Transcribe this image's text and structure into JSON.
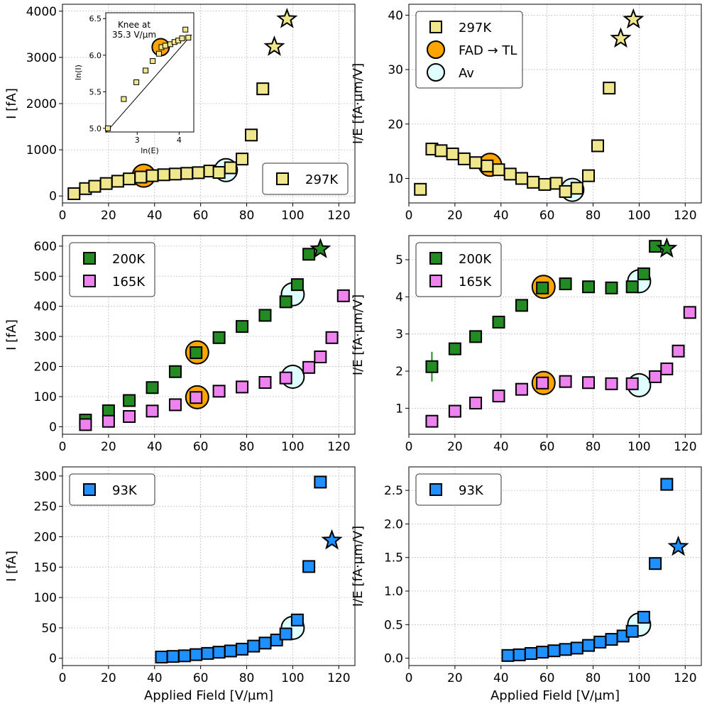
{
  "colors": {
    "c297": "#f0e68c",
    "c200": "#228b22",
    "c165": "#ee82ee",
    "c93": "#1e90ff",
    "fad": "#ffa500",
    "av": "#e0ffff",
    "grid": "#b0b0b0"
  },
  "chart_data": [
    {
      "id": "a",
      "type": "scatter",
      "xlim": [
        0,
        127
      ],
      "ylim": [
        -150,
        4150
      ],
      "xticks": [
        0,
        20,
        40,
        60,
        80,
        100,
        120
      ],
      "yticks": [
        0,
        1000,
        2000,
        3000,
        4000
      ],
      "xlabel": "",
      "ylabel": "I [fA]",
      "grid": true,
      "legend": {
        "position": "lower-right",
        "entries": [
          {
            "label": "297K",
            "marker": "square",
            "color": "c297"
          }
        ]
      },
      "series": [
        {
          "name": "297K",
          "marker": "square",
          "color": "c297",
          "x": [
            5,
            10,
            14,
            19,
            24,
            29,
            34,
            39,
            44,
            49,
            54,
            59,
            64,
            68,
            73,
            78,
            82,
            87
          ],
          "y": [
            50,
            160,
            210,
            270,
            320,
            370,
            410,
            440,
            460,
            475,
            490,
            505,
            540,
            510,
            610,
            800,
            1320,
            2320
          ]
        },
        {
          "name": "stars",
          "marker": "star",
          "color": "c297",
          "x": [
            92,
            97.5
          ],
          "y": [
            3230,
            3830
          ]
        }
      ],
      "fad": {
        "x": 35.3,
        "y": 440
      },
      "av": {
        "x": 71,
        "y": 560
      },
      "inset": {
        "xlim": [
          2.25,
          4.35
        ],
        "ylim": [
          4.95,
          6.58
        ],
        "xticks": [
          3,
          4
        ],
        "yticks": [
          5.0,
          5.5,
          6.0,
          6.5
        ],
        "xlabel": "ln(E)",
        "ylabel": "ln(I)",
        "annotation": [
          "Knee at",
          "35.3 V/µm"
        ],
        "points": {
          "x": [
            2.3,
            2.68,
            2.98,
            3.2,
            3.37,
            3.52,
            3.58,
            3.67,
            3.79,
            3.89,
            3.98,
            4.07,
            4.15,
            4.22
          ],
          "y": [
            5.0,
            5.4,
            5.63,
            5.79,
            5.92,
            6.02,
            6.11,
            6.13,
            6.15,
            6.18,
            6.2,
            6.23,
            6.35,
            6.24
          ]
        },
        "fit": {
          "x": [
            2.25,
            4.3
          ],
          "y": [
            4.94,
            6.28
          ]
        },
        "fad": {
          "x": 3.56,
          "y": 6.11
        }
      }
    },
    {
      "id": "b",
      "type": "scatter",
      "xlim": [
        0,
        127
      ],
      "ylim": [
        5.5,
        42
      ],
      "xticks": [
        0,
        20,
        40,
        60,
        80,
        100,
        120
      ],
      "yticks": [
        10,
        20,
        30,
        40
      ],
      "xlabel": "",
      "ylabel": "I/E [fA·µm/V]",
      "grid": true,
      "legend": {
        "position": "top-left",
        "entries": [
          {
            "label": "297K",
            "marker": "square",
            "color": "c297"
          },
          {
            "label": "FAD → TL",
            "marker": "circle",
            "color": "fad"
          },
          {
            "label": "Av",
            "marker": "circle",
            "color": "av"
          }
        ]
      },
      "series": [
        {
          "name": "297K",
          "marker": "square",
          "color": "c297",
          "x": [
            5,
            10,
            14,
            19,
            24,
            29,
            34,
            39,
            44,
            49,
            54,
            59,
            64,
            68,
            73,
            78,
            82,
            87
          ],
          "y": [
            8,
            15.4,
            15.1,
            14.5,
            13.6,
            12.9,
            12.3,
            11.6,
            10.8,
            10,
            9.3,
            8.9,
            9.1,
            7.6,
            8.2,
            10.5,
            16,
            26.6
          ]
        },
        {
          "name": "stars",
          "marker": "star",
          "color": "c297",
          "x": [
            92,
            97.5
          ],
          "y": [
            35.7,
            39.2
          ]
        }
      ],
      "fad": {
        "x": 35.3,
        "y": 12.5
      },
      "av": {
        "x": 71,
        "y": 7.9
      }
    },
    {
      "id": "c",
      "type": "scatter",
      "xlim": [
        0,
        127
      ],
      "ylim": [
        -25,
        635
      ],
      "xticks": [
        0,
        20,
        40,
        60,
        80,
        100,
        120
      ],
      "yticks": [
        0,
        100,
        200,
        300,
        400,
        500,
        600
      ],
      "xlabel": "",
      "ylabel": "I [fA]",
      "grid": true,
      "legend": {
        "position": "top-left",
        "entries": [
          {
            "label": "200K",
            "marker": "square",
            "color": "c200"
          },
          {
            "label": "165K",
            "marker": "square",
            "color": "c165"
          }
        ]
      },
      "series": [
        {
          "name": "200K",
          "marker": "square",
          "color": "c200",
          "x": [
            10,
            20,
            29,
            39,
            49,
            58,
            68,
            78,
            88,
            97,
            102,
            107
          ],
          "y": [
            22,
            53,
            87,
            130,
            183,
            246,
            296,
            333,
            370,
            415,
            472,
            573
          ]
        },
        {
          "name": "165K",
          "marker": "square",
          "color": "c165",
          "x": [
            10,
            20,
            29,
            39,
            49,
            58,
            68,
            78,
            88,
            97,
            107,
            112,
            117,
            122
          ],
          "y": [
            7,
            18,
            34,
            52,
            73,
            97,
            118,
            132,
            147,
            162,
            197,
            232,
            296,
            435
          ]
        },
        {
          "name": "star200",
          "marker": "star",
          "color": "c200",
          "x": [
            112
          ],
          "y": [
            590
          ]
        }
      ],
      "fad": [
        {
          "x": 58.5,
          "y": 247
        },
        {
          "x": 58.5,
          "y": 98
        }
      ],
      "av": [
        {
          "x": 100,
          "y": 440
        },
        {
          "x": 100,
          "y": 166
        }
      ]
    },
    {
      "id": "d",
      "type": "scatter",
      "xlim": [
        0,
        127
      ],
      "ylim": [
        0.3,
        5.65
      ],
      "xticks": [
        0,
        20,
        40,
        60,
        80,
        100,
        120
      ],
      "yticks": [
        1,
        2,
        3,
        4,
        5
      ],
      "xlabel": "",
      "ylabel": "I/E [fA·µm/V]",
      "grid": true,
      "legend": {
        "position": "top-left",
        "entries": [
          {
            "label": "200K",
            "marker": "square",
            "color": "c200"
          },
          {
            "label": "165K",
            "marker": "square",
            "color": "c165"
          }
        ]
      },
      "series": [
        {
          "name": "200K",
          "marker": "square",
          "color": "c200",
          "x": [
            10,
            20,
            29,
            39,
            49,
            58,
            68,
            78,
            88,
            97,
            102,
            107
          ],
          "y": [
            2.12,
            2.6,
            2.93,
            3.32,
            3.77,
            4.24,
            4.35,
            4.27,
            4.24,
            4.27,
            4.62,
            5.36
          ]
        },
        {
          "name": "165K",
          "marker": "square",
          "color": "c165",
          "x": [
            10,
            20,
            29,
            39,
            49,
            58,
            68,
            78,
            88,
            97,
            107,
            112,
            117,
            122
          ],
          "y": [
            0.65,
            0.92,
            1.14,
            1.33,
            1.51,
            1.68,
            1.72,
            1.69,
            1.66,
            1.66,
            1.85,
            2.06,
            2.54,
            3.58
          ]
        },
        {
          "name": "star200",
          "marker": "star",
          "color": "c200",
          "x": [
            112
          ],
          "y": [
            5.3
          ]
        }
      ],
      "errorbars": [
        {
          "x": 10,
          "low": 1.72,
          "high": 2.52,
          "color": "c200"
        },
        {
          "x": 20,
          "low": 2.44,
          "high": 2.76,
          "color": "c200"
        }
      ],
      "fad": [
        {
          "x": 58.5,
          "y": 4.27
        },
        {
          "x": 58.5,
          "y": 1.68
        }
      ],
      "av": [
        {
          "x": 100,
          "y": 4.42
        },
        {
          "x": 100,
          "y": 1.62
        }
      ]
    },
    {
      "id": "e",
      "type": "scatter",
      "xlim": [
        0,
        127
      ],
      "ylim": [
        -12,
        315
      ],
      "xticks": [
        0,
        20,
        40,
        60,
        80,
        100,
        120
      ],
      "yticks": [
        0,
        50,
        100,
        150,
        200,
        250,
        300
      ],
      "xlabel": "Applied Field [V/µm]",
      "ylabel": "I [fA]",
      "grid": true,
      "legend": {
        "position": "top-left",
        "entries": [
          {
            "label": "93K",
            "marker": "square",
            "color": "c93"
          }
        ]
      },
      "series": [
        {
          "name": "93K",
          "marker": "square",
          "color": "c93",
          "x": [
            43,
            48,
            53,
            58,
            63,
            68,
            73,
            78,
            83,
            88,
            93,
            97,
            102,
            107,
            112
          ],
          "y": [
            2,
            3,
            4,
            6,
            8,
            10,
            12,
            15,
            20,
            25,
            30,
            40,
            63,
            151,
            290
          ]
        },
        {
          "name": "star93",
          "marker": "star",
          "color": "c93",
          "x": [
            117
          ],
          "y": [
            194
          ]
        }
      ],
      "av": {
        "x": 100,
        "y": 50
      }
    },
    {
      "id": "f",
      "type": "scatter",
      "xlim": [
        0,
        127
      ],
      "ylim": [
        -0.11,
        2.85
      ],
      "xticks": [
        0,
        20,
        40,
        60,
        80,
        100,
        120
      ],
      "yticks": [
        0.0,
        0.5,
        1.0,
        1.5,
        2.0,
        2.5
      ],
      "xlabel": "Applied Field [V/µm]",
      "ylabel": "I/E [fA·µm/V]",
      "grid": true,
      "legend": {
        "position": "top-left",
        "entries": [
          {
            "label": "93K",
            "marker": "square",
            "color": "c93"
          }
        ]
      },
      "series": [
        {
          "name": "93K",
          "marker": "square",
          "color": "c93",
          "x": [
            43,
            48,
            53,
            58,
            63,
            68,
            73,
            78,
            83,
            88,
            93,
            97,
            102,
            107,
            112
          ],
          "y": [
            0.04,
            0.05,
            0.07,
            0.09,
            0.11,
            0.13,
            0.15,
            0.19,
            0.24,
            0.28,
            0.33,
            0.4,
            0.61,
            1.41,
            2.59
          ]
        },
        {
          "name": "star93",
          "marker": "star",
          "color": "c93",
          "x": [
            117
          ],
          "y": [
            1.66
          ]
        }
      ],
      "av": {
        "x": 100,
        "y": 0.5
      }
    }
  ]
}
